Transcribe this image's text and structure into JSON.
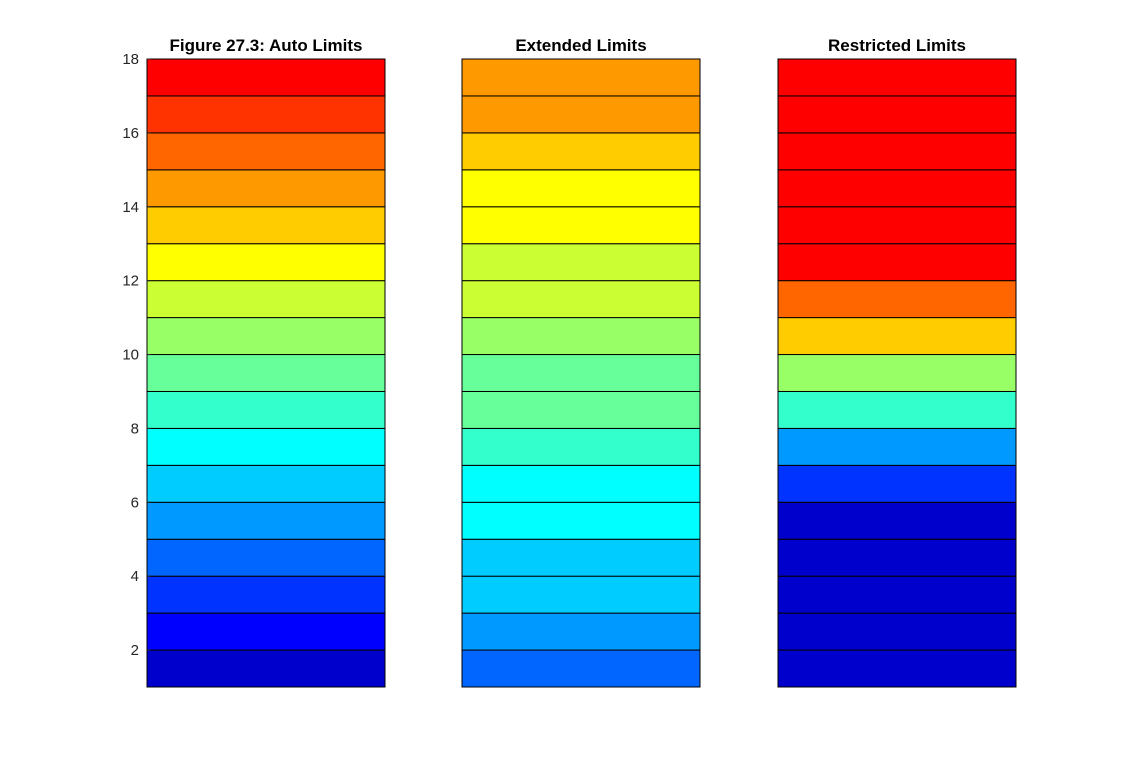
{
  "chart_data": [
    {
      "type": "heatmap",
      "title": "Figure 27.3: Auto Limits",
      "ylim": [
        1,
        18
      ],
      "yticks": [
        2,
        4,
        6,
        8,
        10,
        12,
        14,
        16,
        18
      ],
      "rows": [
        {
          "y": [
            1,
            2
          ],
          "color": "#0000CC"
        },
        {
          "y": [
            2,
            3
          ],
          "color": "#0000FF"
        },
        {
          "y": [
            3,
            4
          ],
          "color": "#0033FF"
        },
        {
          "y": [
            4,
            5
          ],
          "color": "#0066FF"
        },
        {
          "y": [
            5,
            6
          ],
          "color": "#0099FF"
        },
        {
          "y": [
            6,
            7
          ],
          "color": "#00CCFF"
        },
        {
          "y": [
            7,
            8
          ],
          "color": "#00FFFF"
        },
        {
          "y": [
            8,
            9
          ],
          "color": "#33FFCC"
        },
        {
          "y": [
            9,
            10
          ],
          "color": "#66FF99"
        },
        {
          "y": [
            10,
            11
          ],
          "color": "#99FF66"
        },
        {
          "y": [
            11,
            12
          ],
          "color": "#CCFF33"
        },
        {
          "y": [
            12,
            13
          ],
          "color": "#FFFF00"
        },
        {
          "y": [
            13,
            14
          ],
          "color": "#FFCC00"
        },
        {
          "y": [
            14,
            15
          ],
          "color": "#FF9900"
        },
        {
          "y": [
            15,
            16
          ],
          "color": "#FF6600"
        },
        {
          "y": [
            16,
            17
          ],
          "color": "#FF3300"
        },
        {
          "y": [
            17,
            18
          ],
          "color": "#FF0000"
        }
      ]
    },
    {
      "type": "heatmap",
      "title": "Extended Limits",
      "ylim": [
        1,
        18
      ],
      "yticks": [],
      "rows": [
        {
          "y": [
            1,
            2
          ],
          "color": "#0066FF"
        },
        {
          "y": [
            2,
            3
          ],
          "color": "#0099FF"
        },
        {
          "y": [
            3,
            4
          ],
          "color": "#00CCFF"
        },
        {
          "y": [
            4,
            5
          ],
          "color": "#00CCFF"
        },
        {
          "y": [
            5,
            6
          ],
          "color": "#00FFFF"
        },
        {
          "y": [
            6,
            7
          ],
          "color": "#00FFFF"
        },
        {
          "y": [
            7,
            8
          ],
          "color": "#33FFCC"
        },
        {
          "y": [
            8,
            9
          ],
          "color": "#66FF99"
        },
        {
          "y": [
            9,
            10
          ],
          "color": "#66FF99"
        },
        {
          "y": [
            10,
            11
          ],
          "color": "#99FF66"
        },
        {
          "y": [
            11,
            12
          ],
          "color": "#CCFF33"
        },
        {
          "y": [
            12,
            13
          ],
          "color": "#CCFF33"
        },
        {
          "y": [
            13,
            14
          ],
          "color": "#FFFF00"
        },
        {
          "y": [
            14,
            15
          ],
          "color": "#FFFF00"
        },
        {
          "y": [
            15,
            16
          ],
          "color": "#FFCC00"
        },
        {
          "y": [
            16,
            17
          ],
          "color": "#FF9900"
        },
        {
          "y": [
            17,
            18
          ],
          "color": "#FF9900"
        }
      ]
    },
    {
      "type": "heatmap",
      "title": "Restricted Limits",
      "ylim": [
        1,
        18
      ],
      "yticks": [],
      "rows": [
        {
          "y": [
            1,
            2
          ],
          "color": "#0000CC"
        },
        {
          "y": [
            2,
            3
          ],
          "color": "#0000CC"
        },
        {
          "y": [
            3,
            4
          ],
          "color": "#0000CC"
        },
        {
          "y": [
            4,
            5
          ],
          "color": "#0000CC"
        },
        {
          "y": [
            5,
            6
          ],
          "color": "#0000CC"
        },
        {
          "y": [
            6,
            7
          ],
          "color": "#0033FF"
        },
        {
          "y": [
            7,
            8
          ],
          "color": "#0099FF"
        },
        {
          "y": [
            8,
            9
          ],
          "color": "#33FFCC"
        },
        {
          "y": [
            9,
            10
          ],
          "color": "#99FF66"
        },
        {
          "y": [
            10,
            11
          ],
          "color": "#FFCC00"
        },
        {
          "y": [
            11,
            12
          ],
          "color": "#FF6600"
        },
        {
          "y": [
            12,
            13
          ],
          "color": "#FF0000"
        },
        {
          "y": [
            13,
            14
          ],
          "color": "#FF0000"
        },
        {
          "y": [
            14,
            15
          ],
          "color": "#FF0000"
        },
        {
          "y": [
            15,
            16
          ],
          "color": "#FF0000"
        },
        {
          "y": [
            16,
            17
          ],
          "color": "#FF0000"
        },
        {
          "y": [
            17,
            18
          ],
          "color": "#FF0000"
        }
      ]
    }
  ]
}
